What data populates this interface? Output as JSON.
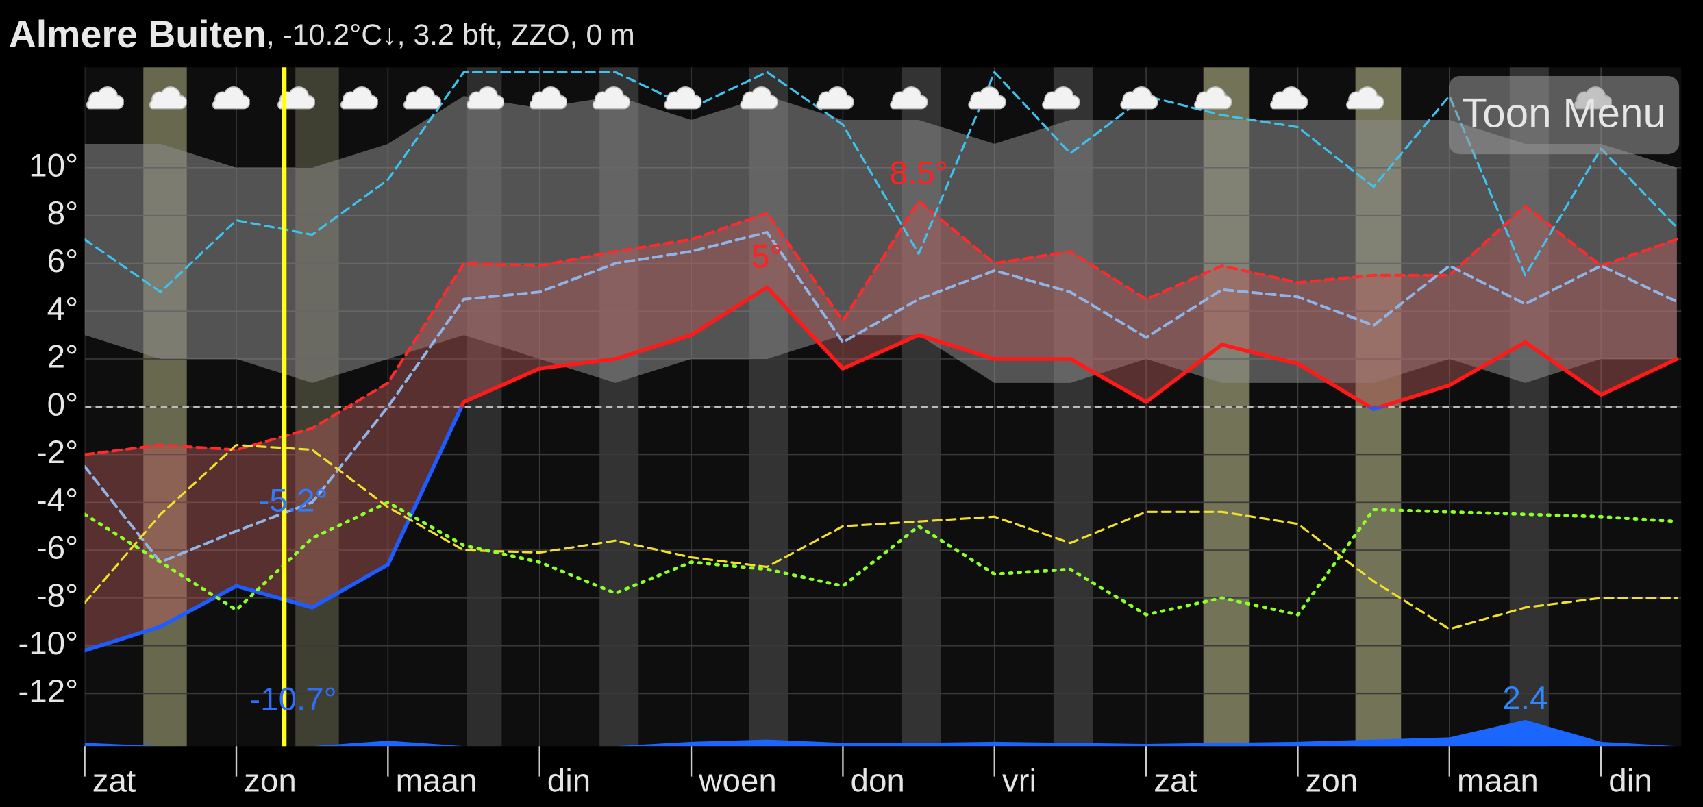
{
  "header": {
    "place": "Almere Buiten",
    "conditions": ", -10.2°C↓, 3.2 bft, ZZO, 0 m"
  },
  "menu_button": "Toon Menu",
  "chart_data": {
    "type": "line",
    "x": [
      0,
      12,
      24,
      36,
      48,
      60,
      72,
      84,
      96,
      108,
      120,
      132,
      144,
      156,
      168,
      180,
      192,
      204,
      216,
      228,
      240,
      252
    ],
    "xlim": [
      0,
      252.7
    ],
    "xticks": [
      {
        "value": 0,
        "label": "zat"
      },
      {
        "value": 24,
        "label": "zon"
      },
      {
        "value": 48,
        "label": "maan"
      },
      {
        "value": 72,
        "label": "din"
      },
      {
        "value": 96,
        "label": "woen"
      },
      {
        "value": 120,
        "label": "don"
      },
      {
        "value": 144,
        "label": "vri"
      },
      {
        "value": 168,
        "label": "zat"
      },
      {
        "value": 192,
        "label": "zon"
      },
      {
        "value": 216,
        "label": "maan"
      },
      {
        "value": 240,
        "label": "din"
      }
    ],
    "ylim": [
      -14.2,
      14.2
    ],
    "yticks": [
      {
        "value": -12,
        "label": "-12°"
      },
      {
        "value": -10,
        "label": "-10°"
      },
      {
        "value": -8,
        "label": "-8°"
      },
      {
        "value": -6,
        "label": "-6°"
      },
      {
        "value": -4,
        "label": "-4°"
      },
      {
        "value": -2,
        "label": "-2°"
      },
      {
        "value": 0,
        "label": "0°"
      },
      {
        "value": 2,
        "label": "2°"
      },
      {
        "value": 4,
        "label": "4°"
      },
      {
        "value": 6,
        "label": "6°"
      },
      {
        "value": 8,
        "label": "8°"
      },
      {
        "value": 10,
        "label": "10°"
      }
    ],
    "grid": true,
    "zero_line": true,
    "now": 31.6,
    "band": {
      "low": [
        3,
        2,
        2,
        1,
        2,
        3,
        2,
        1,
        2,
        2,
        3,
        3,
        1,
        1,
        2,
        1,
        1,
        1,
        2,
        1,
        2,
        2
      ],
      "high": [
        11,
        11,
        10,
        10,
        11,
        13,
        12.5,
        13,
        12,
        13,
        12,
        12,
        11,
        12,
        12,
        12,
        12,
        12,
        12,
        11,
        11,
        10
      ],
      "color": "#8c8c8c"
    },
    "fill_between": {
      "series": [
        0,
        1
      ],
      "color": "#b55a5a"
    },
    "series": [
      {
        "color": "#ff1a1a",
        "color_below_zero": "#1f5cff",
        "dash": "solid",
        "width": 3.5,
        "values": [
          -10.2,
          -9.2,
          -7.5,
          -8.4,
          -6.6,
          0.2,
          1.6,
          2.0,
          3.0,
          5.0,
          1.6,
          3.0,
          2.0,
          2.0,
          0.2,
          2.6,
          1.8,
          -0.1,
          0.9,
          2.7,
          0.5,
          2.0
        ]
      },
      {
        "color": "#ff2a2a",
        "dash": "dashed",
        "width": 2.5,
        "values": [
          -2.0,
          -1.6,
          -1.8,
          -0.9,
          1.0,
          6.0,
          5.9,
          6.5,
          7.0,
          8.1,
          3.6,
          8.6,
          6.0,
          6.5,
          4.5,
          5.9,
          5.2,
          5.5,
          5.5,
          8.4,
          5.9,
          7.0
        ]
      },
      {
        "color": "#8fb4e8",
        "dash": "dashed",
        "width": 2.5,
        "values": [
          -2.5,
          -6.5,
          -5.2,
          -4.0,
          0,
          4.5,
          4.8,
          6.0,
          6.5,
          7.3,
          2.7,
          4.5,
          5.7,
          4.8,
          2.9,
          4.9,
          4.6,
          3.4,
          5.9,
          4.3,
          5.9,
          4.4
        ]
      },
      {
        "color": "#f2e02a",
        "dash": "dashed",
        "width": 2,
        "values": [
          -8.2,
          -4.5,
          -1.6,
          -1.8,
          -4.2,
          -6.0,
          -6.1,
          -5.6,
          -6.3,
          -6.7,
          -5.0,
          -4.8,
          -4.6,
          -5.7,
          -4.4,
          -4.4,
          -4.9,
          -7.3,
          -9.3,
          -8.4,
          -8.0,
          -8.0
        ]
      },
      {
        "color": "#3cc3f0",
        "dash": "dashed",
        "width": 2,
        "values": [
          7.0,
          4.8,
          7.8,
          7.2,
          9.5,
          14.0,
          14.0,
          14.0,
          12.5,
          14.0,
          11.8,
          6.4,
          14.0,
          10.6,
          13.0,
          12.2,
          11.7,
          9.2,
          13.0,
          5.5,
          10.8,
          7.5
        ]
      },
      {
        "color": "#8cff2a",
        "dash": "dotted",
        "width": 3,
        "values": [
          -4.5,
          -6.5,
          -8.5,
          -5.5,
          -4.0,
          -5.8,
          -6.5,
          -7.8,
          -6.5,
          -6.8,
          -7.5,
          -5.0,
          -7.0,
          -6.8,
          -8.7,
          -8.0,
          -8.7,
          -4.3,
          -4.4,
          -4.5,
          -4.6,
          -4.8
        ]
      }
    ],
    "precipitation": {
      "color": "#1a66ff",
      "ylim": [
        0,
        62
      ],
      "values": [
        0.3,
        0,
        0,
        0,
        0.5,
        0,
        0,
        0,
        0.4,
        0.6,
        0.3,
        0.3,
        0.4,
        0.3,
        0.2,
        0.3,
        0.4,
        0.6,
        0.8,
        2.4,
        0.4,
        0
      ]
    },
    "annotations": [
      {
        "x": 132,
        "value": 8.5,
        "label": "8.5°",
        "color": "#ff2020",
        "placement": "above"
      },
      {
        "x": 108,
        "value": 5,
        "label": "5°",
        "color": "#ff2020",
        "placement": "above"
      },
      {
        "x": 33,
        "value": -5.2,
        "label": "-5.2°",
        "color": "#2f7cff",
        "placement": "above"
      },
      {
        "x": 33,
        "value": -10.7,
        "label": "-10.7°",
        "color": "#2f6cff",
        "placement": "below"
      }
    ],
    "precip_annotations": [
      {
        "x": 228,
        "value": 2.4,
        "label": "2.4",
        "color": "#2f86ff"
      }
    ]
  }
}
